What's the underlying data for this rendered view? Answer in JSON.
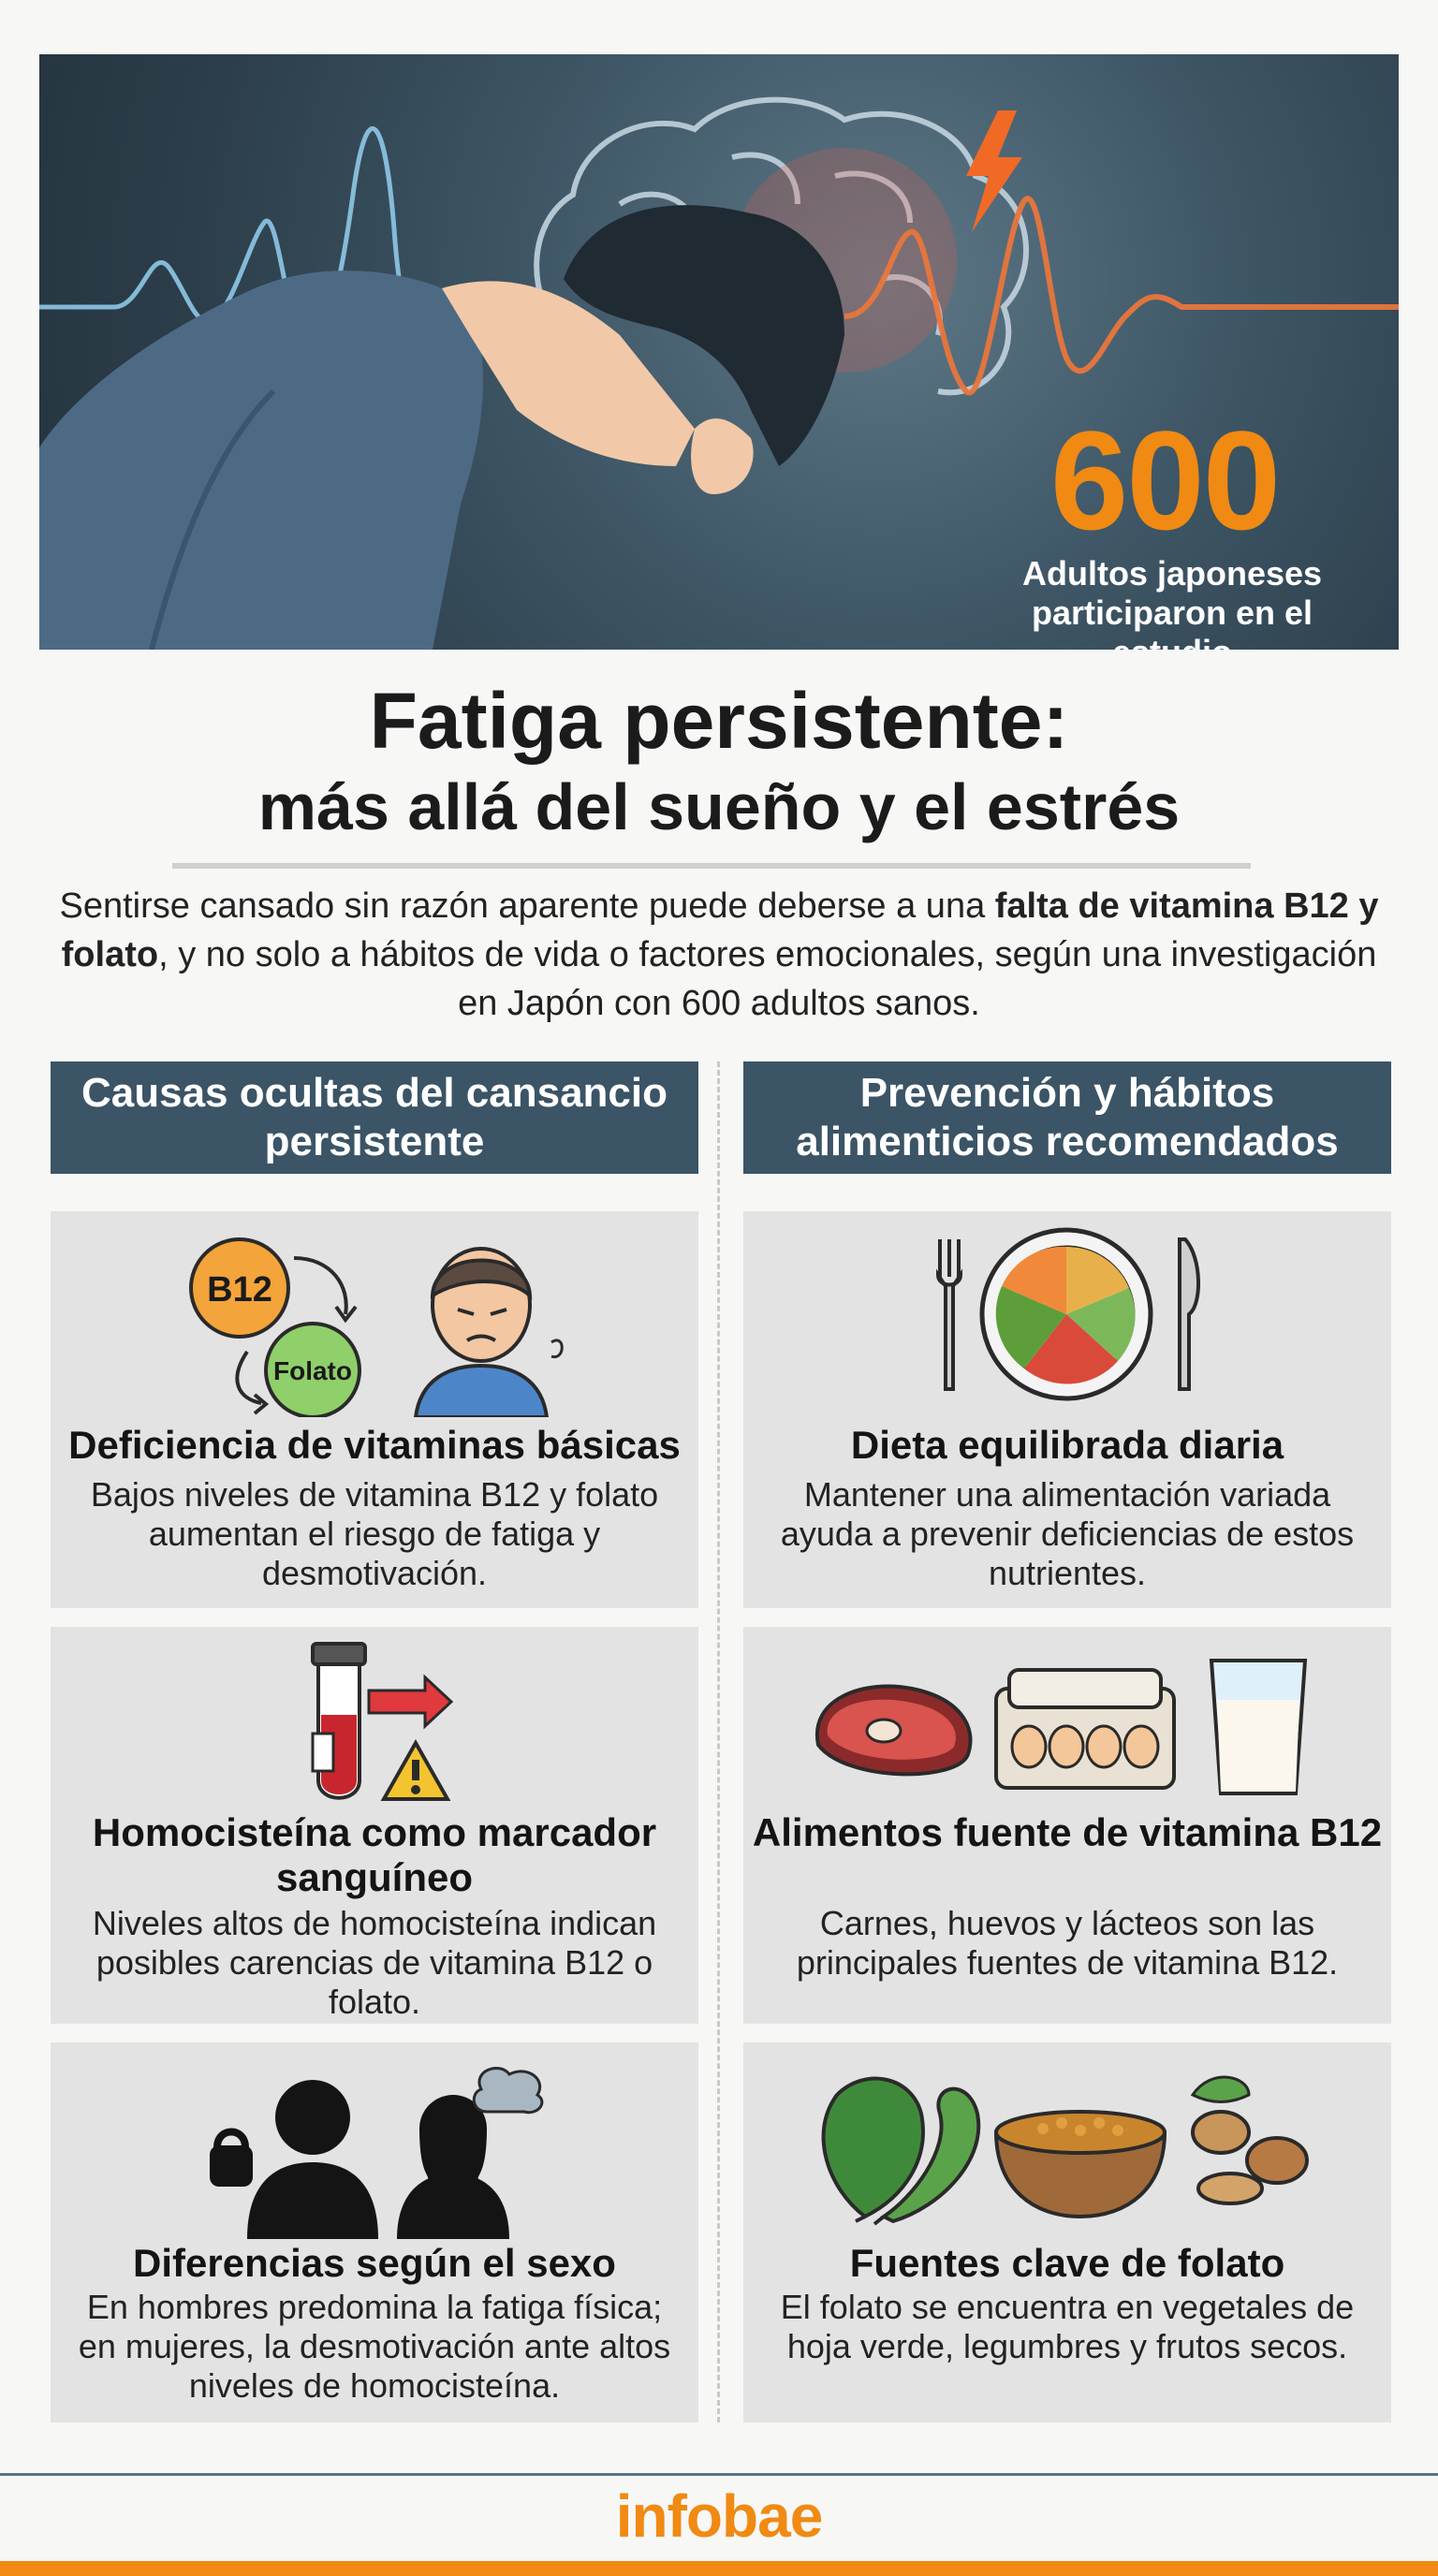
{
  "hero": {
    "stat_number": "600",
    "stat_caption": "Adultos japoneses participaron en el estudio"
  },
  "title": {
    "line1": "Fatiga persistente:",
    "line2": "más allá del sueño y el estrés"
  },
  "intro": {
    "part1": "Sentirse cansado sin razón aparente puede deberse a una ",
    "bold": "falta de vitamina B12 y folato",
    "part2": ", y no solo a hábitos de vida o factores emocionales, según una investigación en Japón con 600 adultos sanos."
  },
  "left_column": {
    "heading": "Causas ocultas del cansancio persistente",
    "cards": [
      {
        "title": "Deficiencia de vitaminas básicas",
        "text": "Bajos niveles de vitamina B12 y folato aumentan el riesgo de fatiga y desmotivación.",
        "icon": "vitamin-b12-folate-icon",
        "badge_b12": "B12",
        "badge_folato": "Folato"
      },
      {
        "title": "Homocisteína como marcador sanguíneo",
        "text": "Niveles altos de homocisteína indican posibles carencias de vitamina B12 o folato.",
        "icon": "blood-test-warning-icon"
      },
      {
        "title": "Diferencias según el sexo",
        "text": "En hombres predomina la fatiga física; en mujeres, la desmotivación ante altos niveles de homocisteína.",
        "icon": "man-woman-silhouette-icon"
      }
    ]
  },
  "right_column": {
    "heading": "Prevención y hábitos alimenticios recomendados",
    "cards": [
      {
        "title": "Dieta equilibrada diaria",
        "text": "Mantener una alimentación variada ayuda a prevenir deficiencias de estos nutrientes.",
        "icon": "plate-fork-knife-icon"
      },
      {
        "title": "Alimentos fuente de vitamina B12",
        "text": "Carnes, huevos y lácteos son las principales fuentes de vitamina B12.",
        "icon": "meat-eggs-milk-icon"
      },
      {
        "title": "Fuentes clave de folato",
        "text": "El folato se encuentra en vegetales de hoja verde, legumbres y frutos secos.",
        "icon": "greens-legumes-nuts-icon"
      }
    ]
  },
  "footer": {
    "brand": "infobae"
  },
  "colors": {
    "accent_orange": "#f08a12",
    "header_slate": "#3b5466",
    "card_gray": "#e3e3e3"
  }
}
